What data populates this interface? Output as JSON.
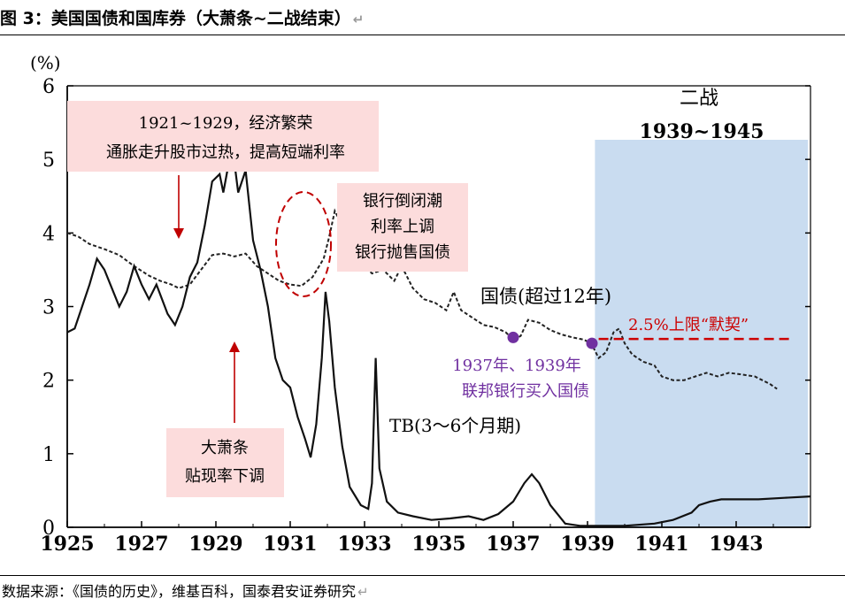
{
  "header": {
    "title": "图 3：美国国债和国库券（大萧条~二战结束）"
  },
  "footer": {
    "source": "数据来源：《国债的历史》，维基百科，国泰君安证券研究"
  },
  "return_mark": "↵",
  "chart_data": {
    "type": "line",
    "ylabel": "(%)",
    "ylim": [
      0,
      6
    ],
    "xlim": [
      1925,
      1945
    ],
    "y_ticks": [
      0,
      1,
      2,
      3,
      4,
      5,
      6
    ],
    "x_ticks": [
      1925,
      1927,
      1929,
      1931,
      1933,
      1935,
      1937,
      1939,
      1941,
      1943
    ],
    "series": [
      {
        "name": "国债(超过12年)",
        "style": "dashed",
        "points": [
          [
            1925.0,
            4.0
          ],
          [
            1925.3,
            3.95
          ],
          [
            1925.6,
            3.85
          ],
          [
            1926.0,
            3.78
          ],
          [
            1926.4,
            3.7
          ],
          [
            1926.8,
            3.55
          ],
          [
            1927.2,
            3.42
          ],
          [
            1927.5,
            3.35
          ],
          [
            1927.8,
            3.3
          ],
          [
            1928.0,
            3.25
          ],
          [
            1928.3,
            3.3
          ],
          [
            1928.6,
            3.5
          ],
          [
            1928.9,
            3.7
          ],
          [
            1929.2,
            3.72
          ],
          [
            1929.5,
            3.68
          ],
          [
            1929.8,
            3.72
          ],
          [
            1930.1,
            3.55
          ],
          [
            1930.4,
            3.45
          ],
          [
            1930.7,
            3.35
          ],
          [
            1931.0,
            3.3
          ],
          [
            1931.3,
            3.28
          ],
          [
            1931.6,
            3.4
          ],
          [
            1931.9,
            3.65
          ],
          [
            1932.05,
            3.95
          ],
          [
            1932.2,
            4.3
          ],
          [
            1932.4,
            4.1
          ],
          [
            1932.6,
            3.8
          ],
          [
            1932.9,
            3.6
          ],
          [
            1933.2,
            3.45
          ],
          [
            1933.5,
            3.5
          ],
          [
            1933.8,
            3.35
          ],
          [
            1934.0,
            3.55
          ],
          [
            1934.3,
            3.25
          ],
          [
            1934.6,
            3.1
          ],
          [
            1934.9,
            3.05
          ],
          [
            1935.2,
            2.95
          ],
          [
            1935.4,
            3.2
          ],
          [
            1935.6,
            2.95
          ],
          [
            1935.9,
            2.85
          ],
          [
            1936.2,
            2.75
          ],
          [
            1936.5,
            2.72
          ],
          [
            1936.8,
            2.65
          ],
          [
            1937.0,
            2.55
          ],
          [
            1937.2,
            2.6
          ],
          [
            1937.4,
            2.82
          ],
          [
            1937.7,
            2.78
          ],
          [
            1938.0,
            2.68
          ],
          [
            1938.3,
            2.62
          ],
          [
            1938.6,
            2.58
          ],
          [
            1938.9,
            2.55
          ],
          [
            1939.1,
            2.5
          ],
          [
            1939.3,
            2.3
          ],
          [
            1939.5,
            2.38
          ],
          [
            1939.7,
            2.65
          ],
          [
            1939.85,
            2.7
          ],
          [
            1940.0,
            2.5
          ],
          [
            1940.2,
            2.35
          ],
          [
            1940.5,
            2.25
          ],
          [
            1940.8,
            2.2
          ],
          [
            1941.0,
            2.05
          ],
          [
            1941.3,
            2.0
          ],
          [
            1941.6,
            2.0
          ],
          [
            1941.9,
            2.05
          ],
          [
            1942.2,
            2.1
          ],
          [
            1942.5,
            2.05
          ],
          [
            1942.8,
            2.1
          ],
          [
            1943.1,
            2.08
          ],
          [
            1943.5,
            2.05
          ],
          [
            1943.9,
            1.95
          ],
          [
            1944.1,
            1.88
          ]
        ]
      },
      {
        "name": "TB(3～6个月期)",
        "style": "solid",
        "points": [
          [
            1925.0,
            2.65
          ],
          [
            1925.2,
            2.7
          ],
          [
            1925.4,
            3.0
          ],
          [
            1925.6,
            3.3
          ],
          [
            1925.8,
            3.65
          ],
          [
            1926.0,
            3.5
          ],
          [
            1926.2,
            3.25
          ],
          [
            1926.4,
            3.0
          ],
          [
            1926.6,
            3.2
          ],
          [
            1926.8,
            3.55
          ],
          [
            1927.0,
            3.3
          ],
          [
            1927.2,
            3.1
          ],
          [
            1927.4,
            3.3
          ],
          [
            1927.7,
            2.9
          ],
          [
            1927.9,
            2.75
          ],
          [
            1928.1,
            3.0
          ],
          [
            1928.3,
            3.4
          ],
          [
            1928.5,
            3.6
          ],
          [
            1928.7,
            4.1
          ],
          [
            1928.9,
            4.7
          ],
          [
            1929.1,
            4.8
          ],
          [
            1929.2,
            4.55
          ],
          [
            1929.4,
            5.1
          ],
          [
            1929.5,
            4.95
          ],
          [
            1929.6,
            4.55
          ],
          [
            1929.8,
            4.85
          ],
          [
            1930.0,
            3.9
          ],
          [
            1930.2,
            3.5
          ],
          [
            1930.4,
            3.0
          ],
          [
            1930.6,
            2.3
          ],
          [
            1930.8,
            2.0
          ],
          [
            1931.0,
            1.9
          ],
          [
            1931.2,
            1.5
          ],
          [
            1931.4,
            1.2
          ],
          [
            1931.55,
            0.95
          ],
          [
            1931.7,
            1.4
          ],
          [
            1931.85,
            2.3
          ],
          [
            1931.95,
            3.2
          ],
          [
            1932.05,
            2.8
          ],
          [
            1932.2,
            1.9
          ],
          [
            1932.4,
            1.1
          ],
          [
            1932.6,
            0.55
          ],
          [
            1932.9,
            0.3
          ],
          [
            1933.1,
            0.25
          ],
          [
            1933.2,
            0.6
          ],
          [
            1933.3,
            2.3
          ],
          [
            1933.4,
            0.8
          ],
          [
            1933.6,
            0.35
          ],
          [
            1933.9,
            0.2
          ],
          [
            1934.3,
            0.15
          ],
          [
            1934.8,
            0.1
          ],
          [
            1935.3,
            0.12
          ],
          [
            1935.8,
            0.15
          ],
          [
            1936.2,
            0.1
          ],
          [
            1936.6,
            0.18
          ],
          [
            1937.0,
            0.35
          ],
          [
            1937.3,
            0.6
          ],
          [
            1937.5,
            0.72
          ],
          [
            1937.7,
            0.6
          ],
          [
            1938.0,
            0.3
          ],
          [
            1938.4,
            0.05
          ],
          [
            1938.8,
            0.02
          ],
          [
            1939.3,
            0.02
          ],
          [
            1940.0,
            0.02
          ],
          [
            1940.8,
            0.05
          ],
          [
            1941.3,
            0.1
          ],
          [
            1941.8,
            0.2
          ],
          [
            1942.0,
            0.3
          ],
          [
            1942.3,
            0.35
          ],
          [
            1942.6,
            0.38
          ],
          [
            1943.0,
            0.38
          ],
          [
            1943.6,
            0.38
          ],
          [
            1944.3,
            0.4
          ],
          [
            1945.0,
            0.42
          ]
        ]
      }
    ],
    "shaded_period": {
      "x": [
        1939.2,
        1945.0
      ],
      "label_line1": "二战",
      "label_line2": "1939~1945",
      "color": "#c9dcf0"
    },
    "limit_line": {
      "y": 2.5,
      "x": [
        1939.3,
        1945.0
      ],
      "label": "2.5%上限“默契”",
      "color": "#cc0000"
    },
    "purchase_points": {
      "points": [
        [
          1937.0,
          2.58
        ],
        [
          1939.0,
          2.5
        ]
      ],
      "label_line1": "1937年、1939年",
      "label_line2": "联邦银行买入国债",
      "color": "#7030a0"
    },
    "annotations": {
      "boom": {
        "line1": "1921~1929，经济繁荣",
        "line2": "通胀走升股市过热，提高短端利率"
      },
      "bank_run": {
        "line1": "银行倒闭潮",
        "line2": "利率上调",
        "line3": "银行抛售国债"
      },
      "depression": {
        "line1": "大萧条",
        "line2": "贴现率下调"
      },
      "series_label_bond": "国债(超过12年)",
      "series_label_tb": "TB(3～6个月期)"
    },
    "colors": {
      "annotation_box": "#fcdcdc",
      "arrow": "#c00000",
      "circle": "#c00000",
      "series": "#111111"
    }
  }
}
